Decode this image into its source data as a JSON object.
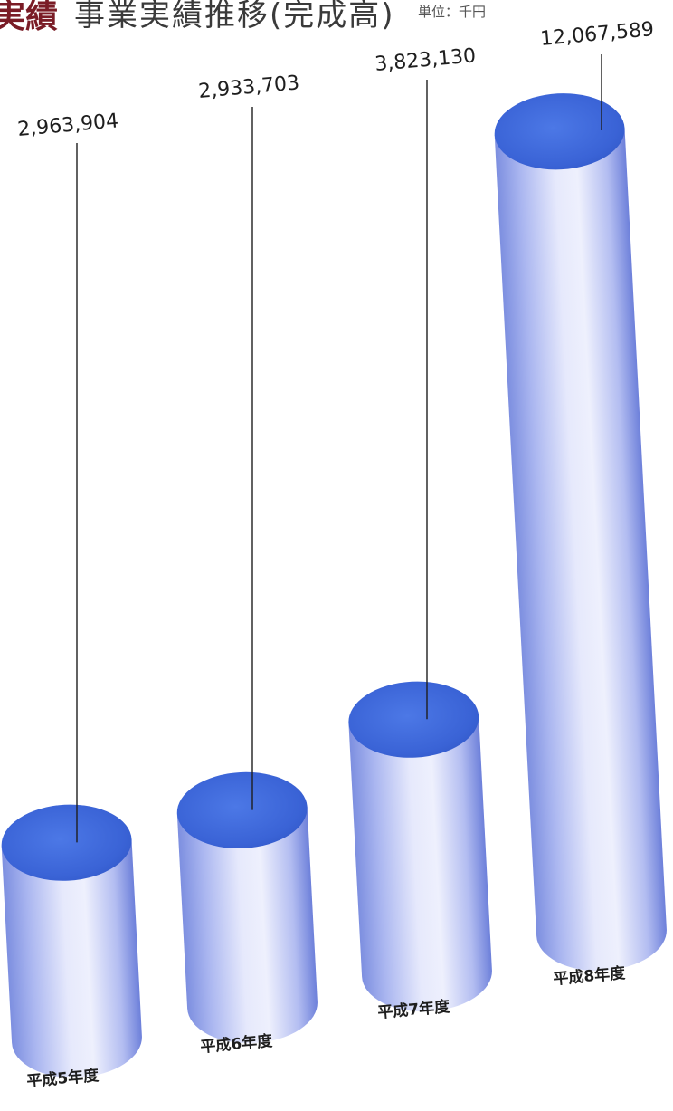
{
  "header": {
    "mark": "実績",
    "title": "事業実績推移(完成高)",
    "unit": "単位：千円"
  },
  "colors": {
    "top_face": "#3b66d8",
    "body_light": "#e3e6fb",
    "body_mid": "#b9c2f2",
    "body_dark": "#6f82dc",
    "title_mark": "#7a1c26"
  },
  "chart_data": {
    "type": "bar",
    "title": "事業実績推移(完成高)",
    "unit": "単位：千円",
    "categories": [
      "平成5年度",
      "平成6年度",
      "平成7年度",
      "平成8年度"
    ],
    "values": [
      2963904,
      2933703,
      3823130,
      12067589
    ],
    "value_labels": [
      "2,963,904",
      "2,933,703",
      "3,823,130",
      "12,067,589"
    ],
    "bar_style": "3d-cylinder",
    "grid": false,
    "legend": "none"
  }
}
